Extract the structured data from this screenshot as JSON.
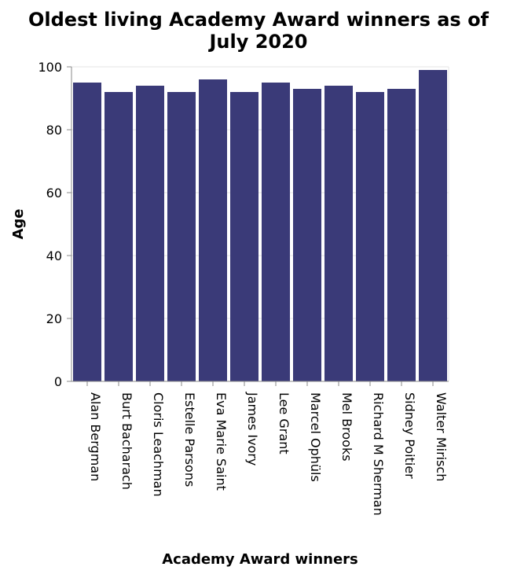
{
  "chart_data": {
    "type": "bar",
    "title_lines": [
      "Oldest living Academy Award winners as of",
      "July 2020"
    ],
    "xlabel": "Academy Award winners",
    "ylabel": "Age",
    "categories": [
      "Alan Bergman",
      "Burt Bacharach",
      "Cloris Leachman",
      "Estelle Parsons",
      "Eva Marie Saint",
      "James Ivory",
      "Lee Grant",
      "Marcel Ophüls",
      "Mel Brooks",
      "Richard M Sherman",
      "Sidney Poitier",
      "Walter Mirisch"
    ],
    "values": [
      95,
      92,
      94,
      92,
      96,
      92,
      95,
      93,
      94,
      92,
      93,
      99
    ],
    "ylim": [
      0,
      100
    ],
    "yticks": [
      0,
      20,
      40,
      60,
      80,
      100
    ],
    "grid": true,
    "bar_color": "#3a3a78"
  }
}
